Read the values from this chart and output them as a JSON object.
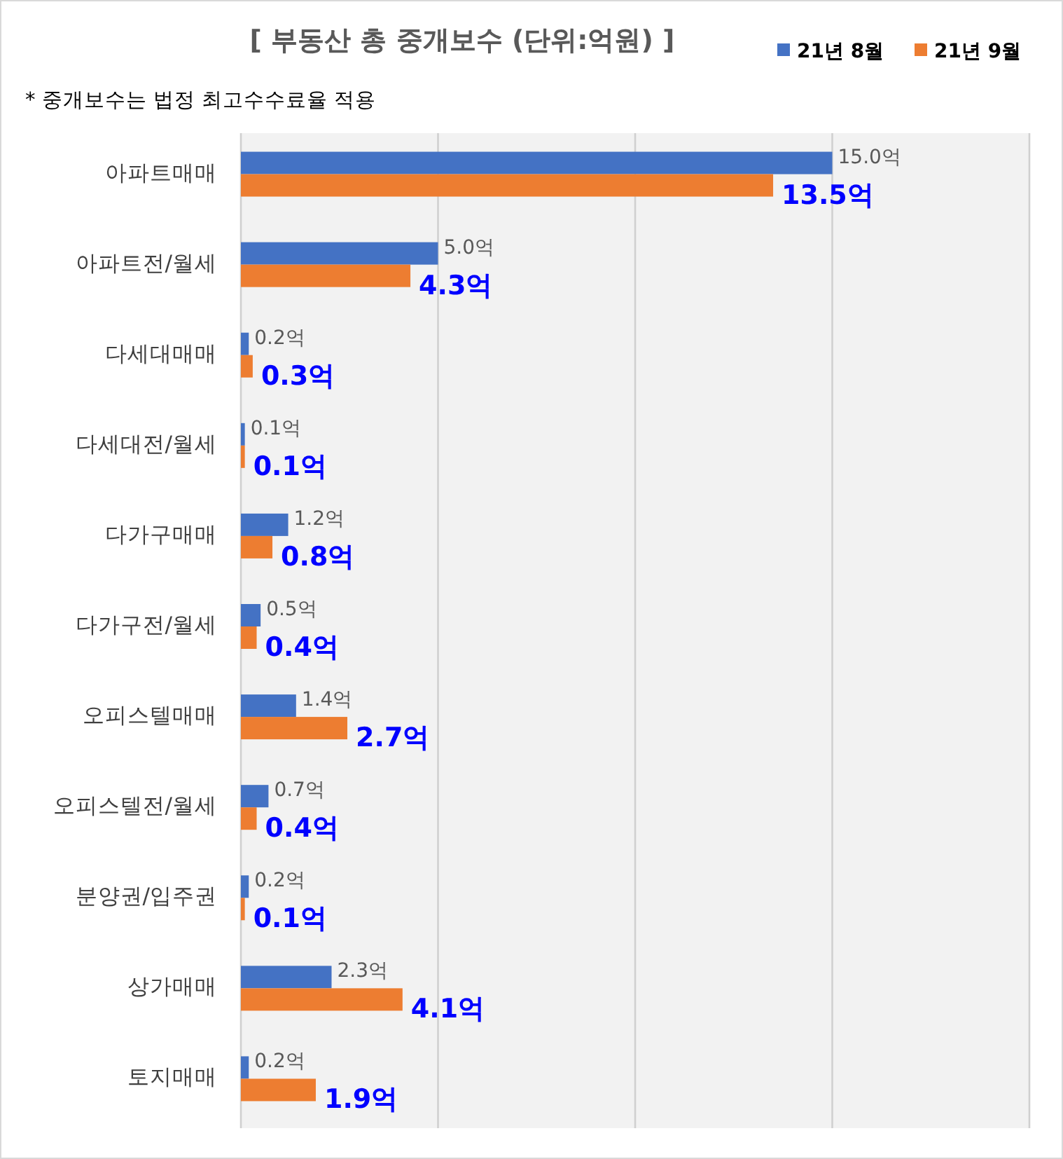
{
  "chart_data": {
    "type": "bar",
    "orientation": "horizontal",
    "title": "[ 부동산 총 중개보수 (단위:억원) ]",
    "annotations": [
      "* 중개보수는 법정 최고수수료율 적용"
    ],
    "categories": [
      "아파트매매",
      "아파트전/월세",
      "다세대매매",
      "다세대전/월세",
      "다가구매매",
      "다가구전/월세",
      "오피스텔매매",
      "오피스텔전/월세",
      "분양권/입주권",
      "상가매매",
      "토지매매"
    ],
    "series": [
      {
        "name": "21년 8월",
        "color": "#4472c4",
        "values": [
          15.0,
          5.0,
          0.2,
          0.1,
          1.2,
          0.5,
          1.4,
          0.7,
          0.2,
          2.3,
          0.2
        ],
        "value_labels": [
          "15.0억",
          "5.0억",
          "0.2억",
          "0.1억",
          "1.2억",
          "0.5억",
          "1.4억",
          "0.7억",
          "0.2억",
          "2.3억",
          "0.2억"
        ]
      },
      {
        "name": "21년 9월",
        "color": "#ed7d31",
        "values": [
          13.5,
          4.3,
          0.3,
          0.1,
          0.8,
          0.4,
          2.7,
          0.4,
          0.1,
          4.1,
          1.9
        ],
        "value_labels": [
          "13.5억",
          "4.3억",
          "0.3억",
          "0.1억",
          "0.8억",
          "0.4억",
          "2.7억",
          "0.4억",
          "0.1억",
          "4.1억",
          "1.9억"
        ]
      }
    ],
    "xlim": [
      0,
      20
    ],
    "xticks": [
      {
        "value": 0,
        "label": null
      },
      {
        "value": 5,
        "label": null
      },
      {
        "value": 10,
        "label": null
      },
      {
        "value": 15,
        "label": null
      },
      {
        "value": 20,
        "label": null
      }
    ],
    "grid": "x",
    "legend": "top right",
    "tick_labels": "y"
  }
}
